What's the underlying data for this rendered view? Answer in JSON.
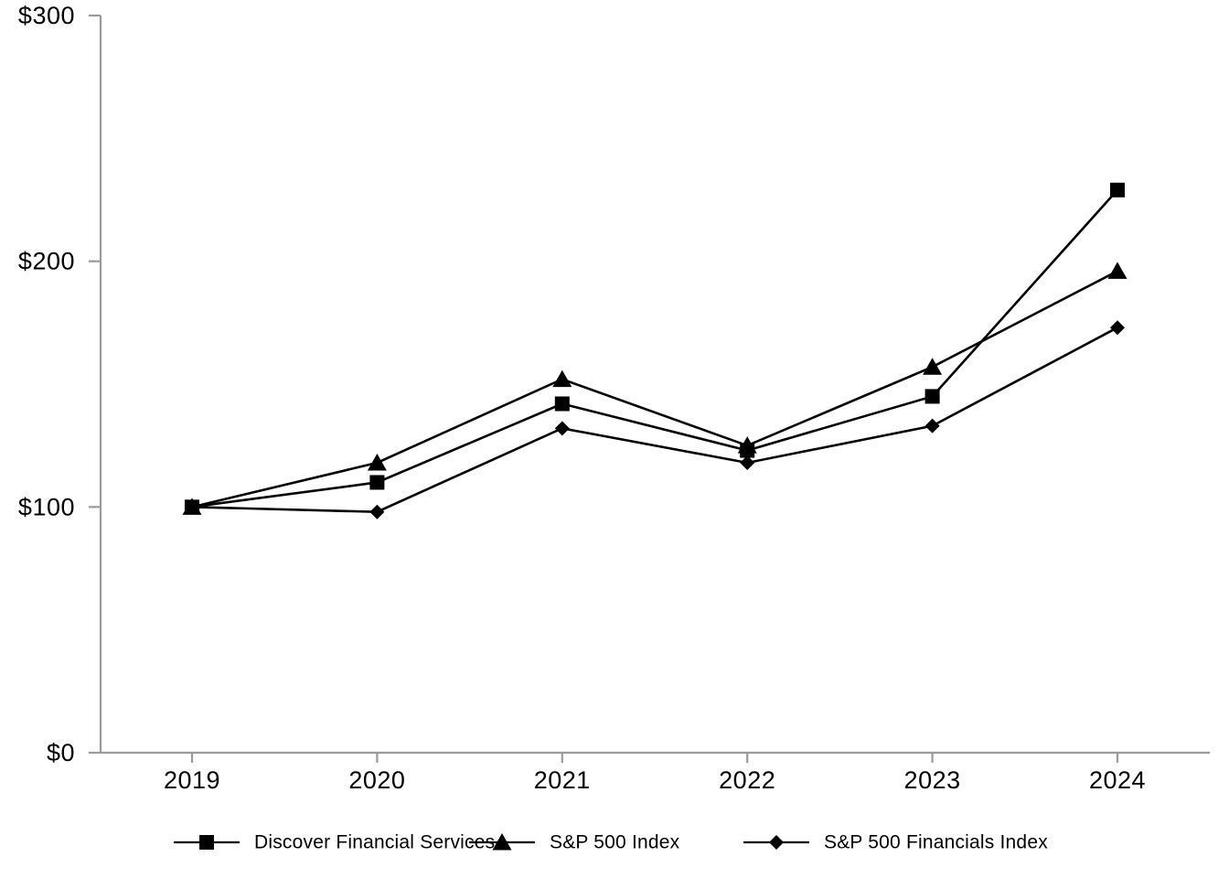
{
  "page": {
    "background_color": "#ffffff",
    "text_color": "#000000",
    "axis_color": "#9a9a9a"
  },
  "chart_data": {
    "type": "line",
    "title": "",
    "xlabel": "",
    "ylabel": "",
    "grid": false,
    "legend_position": "bottom",
    "x_labels": [
      "2019",
      "2020",
      "2021",
      "2022",
      "2023",
      "2024"
    ],
    "ylim": [
      0,
      300
    ],
    "y_ticks": [
      {
        "value": 0,
        "label": "$0"
      },
      {
        "value": 100,
        "label": "$100"
      },
      {
        "value": 200,
        "label": "$200"
      },
      {
        "value": 300,
        "label": "$300"
      }
    ],
    "series": [
      {
        "name": "Discover Financial Services",
        "marker": "square",
        "color": "#000000",
        "values": [
          100,
          110,
          142,
          123,
          145,
          229
        ]
      },
      {
        "name": "S&P 500 Index",
        "marker": "triangle",
        "color": "#000000",
        "values": [
          100,
          118,
          152,
          125,
          157,
          196
        ]
      },
      {
        "name": "S&P 500 Financials Index",
        "marker": "diamond",
        "color": "#000000",
        "values": [
          100,
          98,
          132,
          118,
          133,
          173
        ]
      }
    ]
  }
}
